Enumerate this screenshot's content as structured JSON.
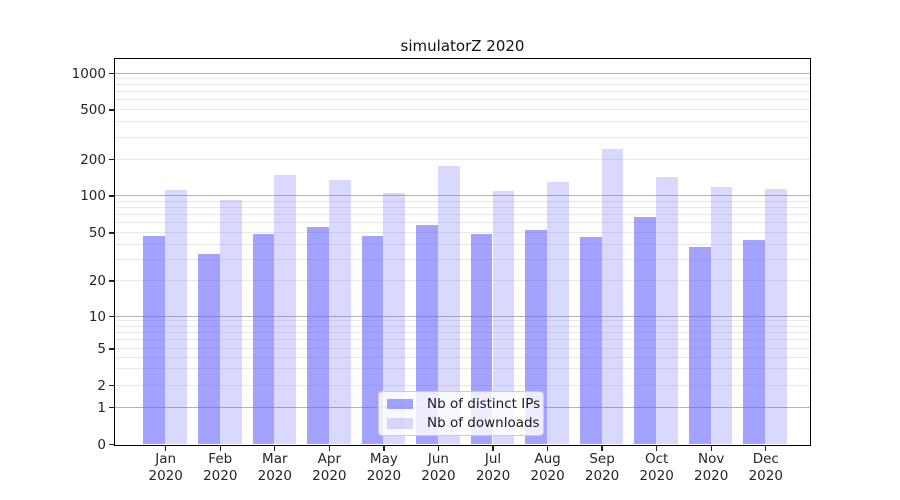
{
  "chart_data": {
    "type": "bar",
    "title": "simulatorZ 2020",
    "categories": [
      "Jan 2020",
      "Feb 2020",
      "Mar 2020",
      "Apr 2020",
      "May 2020",
      "Jun 2020",
      "Jul 2020",
      "Aug 2020",
      "Sep 2020",
      "Oct 2020",
      "Nov 2020",
      "Dec 2020"
    ],
    "series": [
      {
        "name": "Nb of distinct IPs",
        "color": "rgba(102,102,255,0.6)",
        "values": [
          47,
          33,
          49,
          55,
          47,
          58,
          49,
          52,
          46,
          67,
          38,
          43
        ]
      },
      {
        "name": "Nb of downloads",
        "color": "rgba(102,102,255,0.25)",
        "values": [
          112,
          92,
          148,
          134,
          105,
          175,
          108,
          129,
          240,
          143,
          118,
          114
        ]
      }
    ],
    "y_axis": {
      "scale": "symlog",
      "tick_values": [
        0,
        1,
        2,
        5,
        10,
        20,
        50,
        100,
        200,
        500,
        1000
      ],
      "tick_labels": [
        "0",
        "1",
        "2",
        "5",
        "10",
        "20",
        "50",
        "100",
        "200",
        "500",
        "1000"
      ],
      "major_grid_values": [
        1,
        10,
        100,
        1000
      ],
      "grid": true,
      "range": [
        0,
        1300
      ]
    },
    "legend": {
      "position": "lower center"
    }
  },
  "colors": {
    "bar_base": "#6666ff",
    "grid_minor": "#e9e9e9",
    "grid_major": "#b3b3b3",
    "axis": "#000000",
    "tick_text": "#262626",
    "legend_border": "#cccccc",
    "legend_bg": "rgba(255,255,255,0.8)"
  }
}
